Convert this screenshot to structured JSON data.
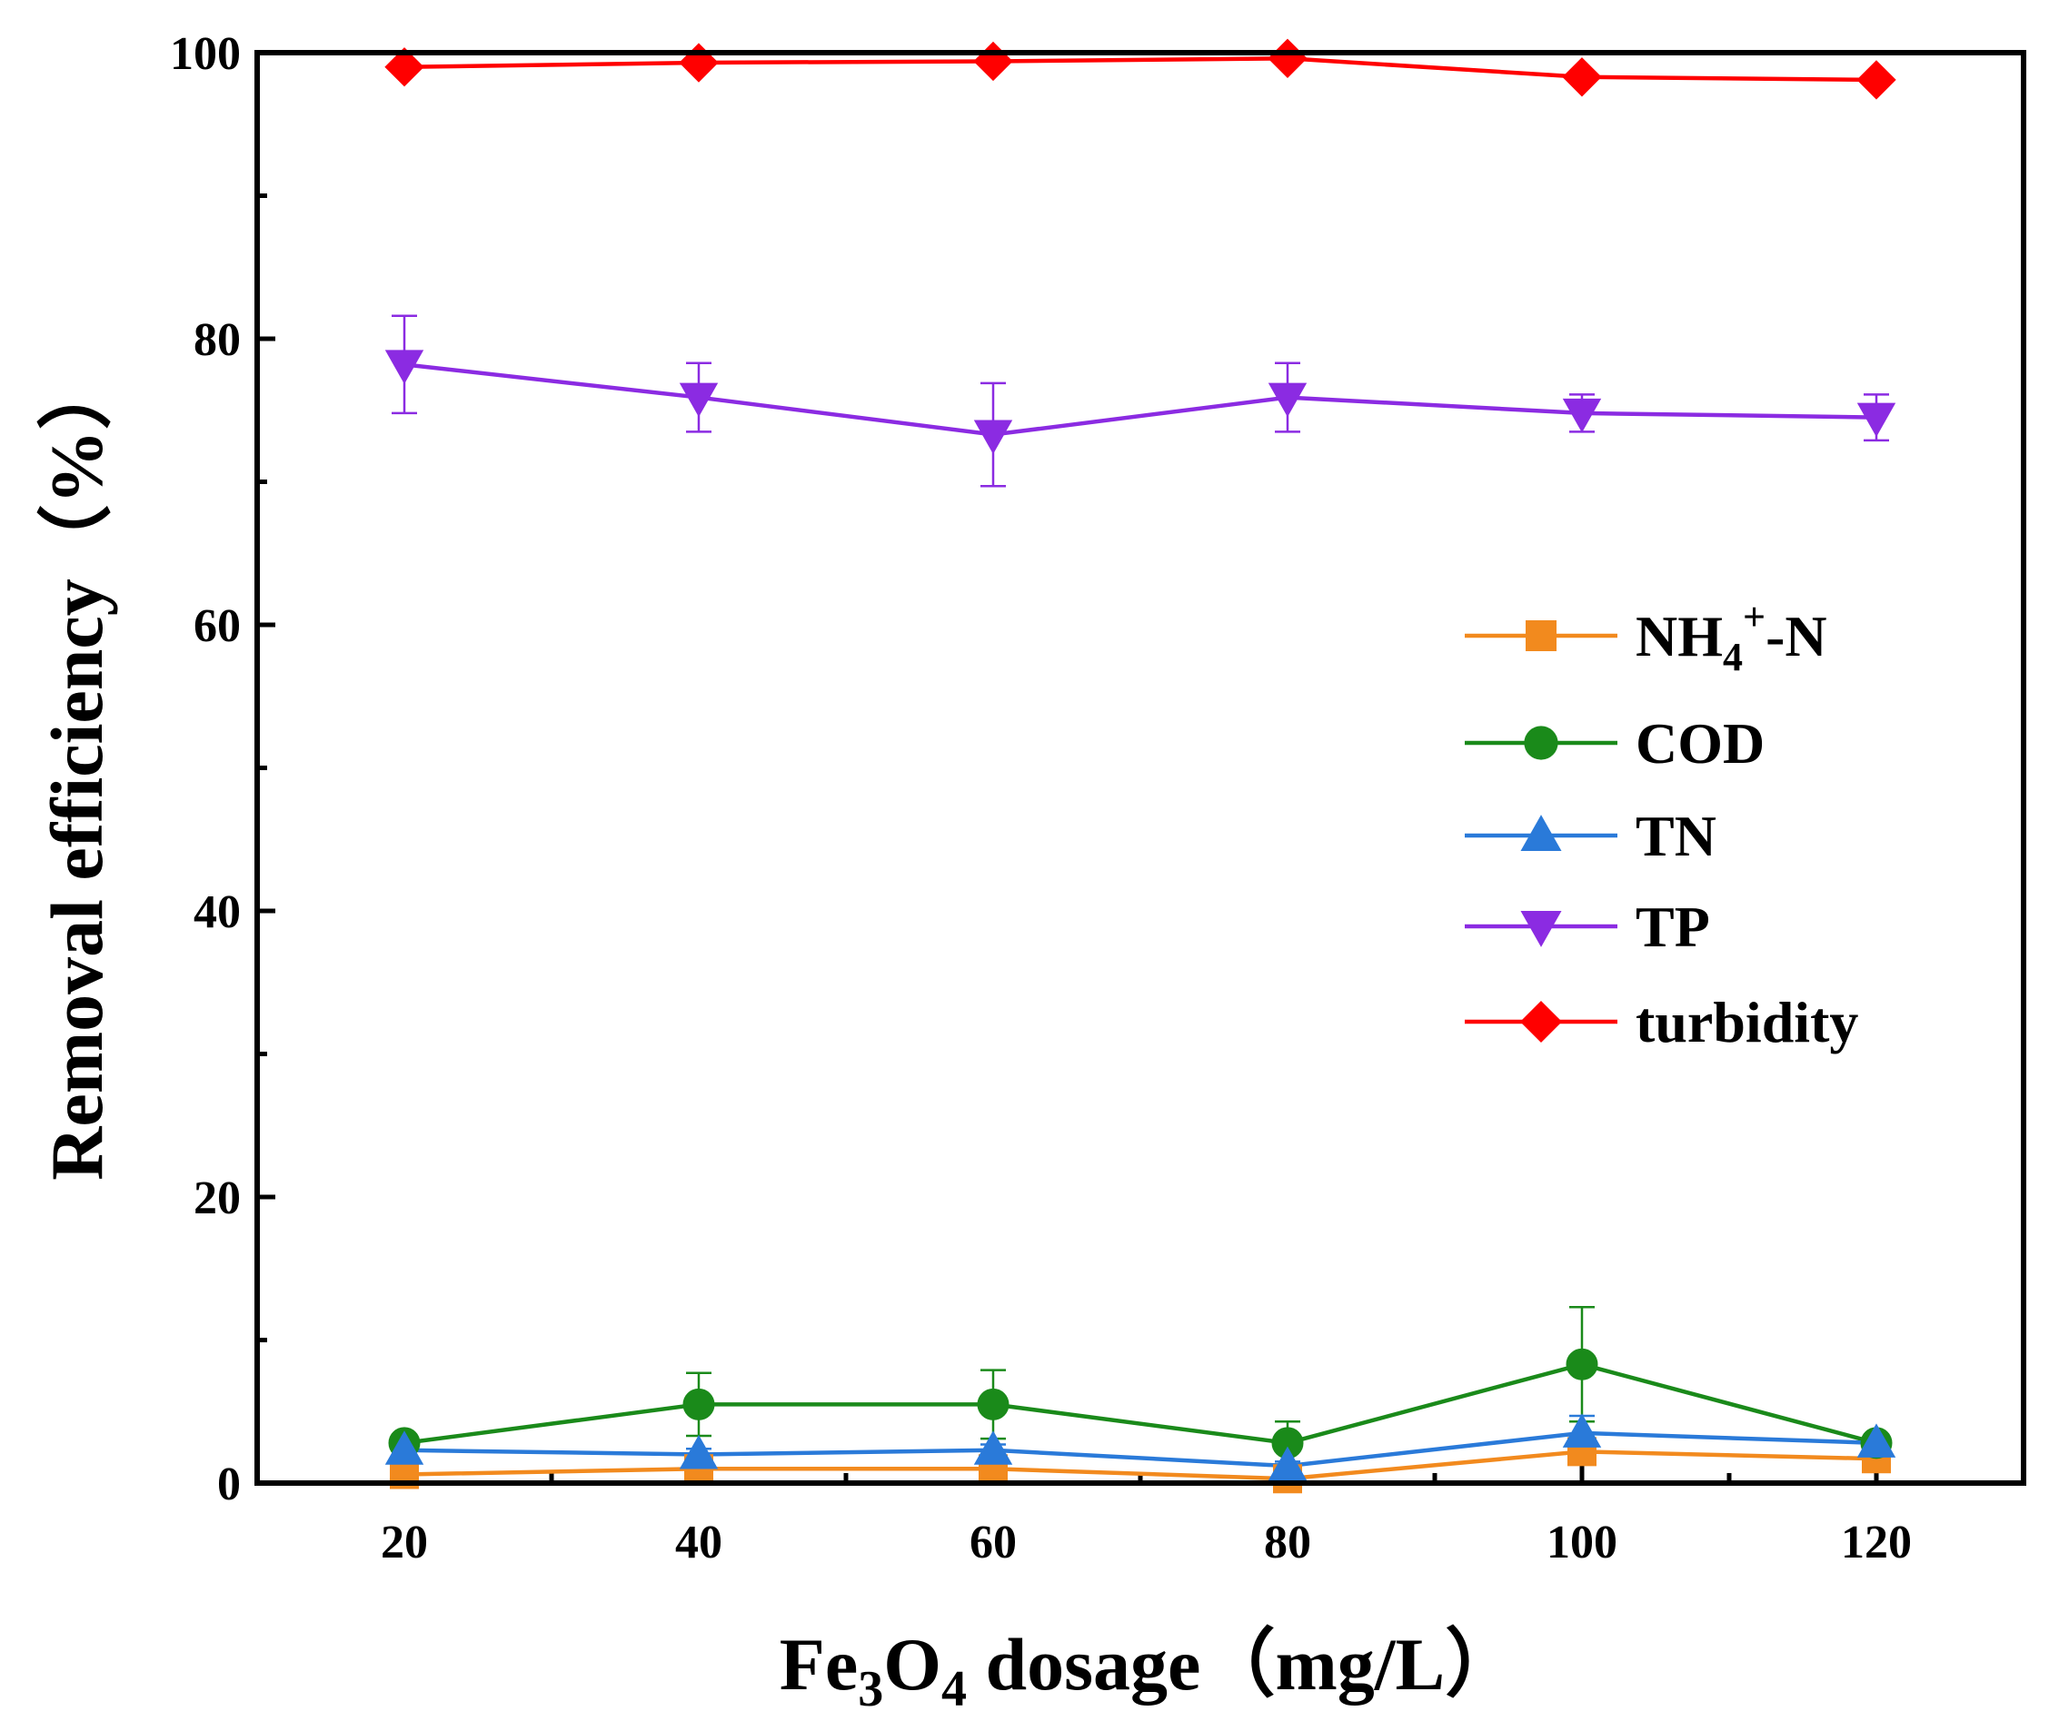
{
  "chart_data": {
    "type": "line",
    "title": "",
    "xlabel": {
      "main": "Fe",
      "sub1": "3",
      "mid": "O",
      "sub2": "4",
      "rest": " dosage（mg/L）"
    },
    "ylabel": "Removal efficiency（%）",
    "xlim": [
      10,
      130
    ],
    "ylim": [
      0,
      100
    ],
    "x": [
      20,
      40,
      60,
      80,
      100,
      120
    ],
    "x_ticks": [
      20,
      40,
      60,
      80,
      100,
      120
    ],
    "x_tick_labels": [
      "20",
      "40",
      "60",
      "80",
      "100",
      "120"
    ],
    "y_ticks": [
      0,
      20,
      40,
      60,
      80,
      100
    ],
    "y_tick_labels": [
      "0",
      "20",
      "40",
      "60",
      "80",
      "100"
    ],
    "legend_position": "center-right",
    "series": [
      {
        "name": "NH4+-N",
        "label_parts": {
          "a": "NH",
          "sub": "4",
          "sup": "+",
          "b": "-N"
        },
        "color": "#f28a1e",
        "marker": "square",
        "values": [
          0.6,
          1.0,
          1.0,
          0.3,
          2.2,
          1.7
        ],
        "errors": [
          0.3,
          0.4,
          0.4,
          0.3,
          0.6,
          0.5
        ]
      },
      {
        "name": "COD",
        "color": "#1a8a1a",
        "marker": "circle",
        "values": [
          2.8,
          5.5,
          5.5,
          2.8,
          8.3,
          2.8
        ],
        "errors": [
          0.6,
          2.2,
          2.4,
          1.5,
          4.0,
          0.6
        ]
      },
      {
        "name": "TN",
        "color": "#2a7ad9",
        "marker": "triangle-up",
        "values": [
          2.3,
          2.0,
          2.3,
          1.2,
          3.5,
          2.8
        ],
        "errors": [
          0.4,
          0.4,
          0.4,
          0.3,
          1.2,
          0.6
        ]
      },
      {
        "name": "TP",
        "color": "#8b2be2",
        "marker": "triangle-down",
        "values": [
          78.2,
          75.9,
          73.3,
          75.9,
          74.8,
          74.5
        ],
        "errors": [
          3.4,
          2.4,
          3.6,
          2.4,
          1.3,
          1.6
        ]
      },
      {
        "name": "turbidity",
        "color": "#ff0000",
        "marker": "diamond",
        "values": [
          99.0,
          99.3,
          99.4,
          99.6,
          98.3,
          98.1
        ],
        "errors": [
          0,
          0,
          0,
          0,
          0,
          0
        ]
      }
    ]
  }
}
